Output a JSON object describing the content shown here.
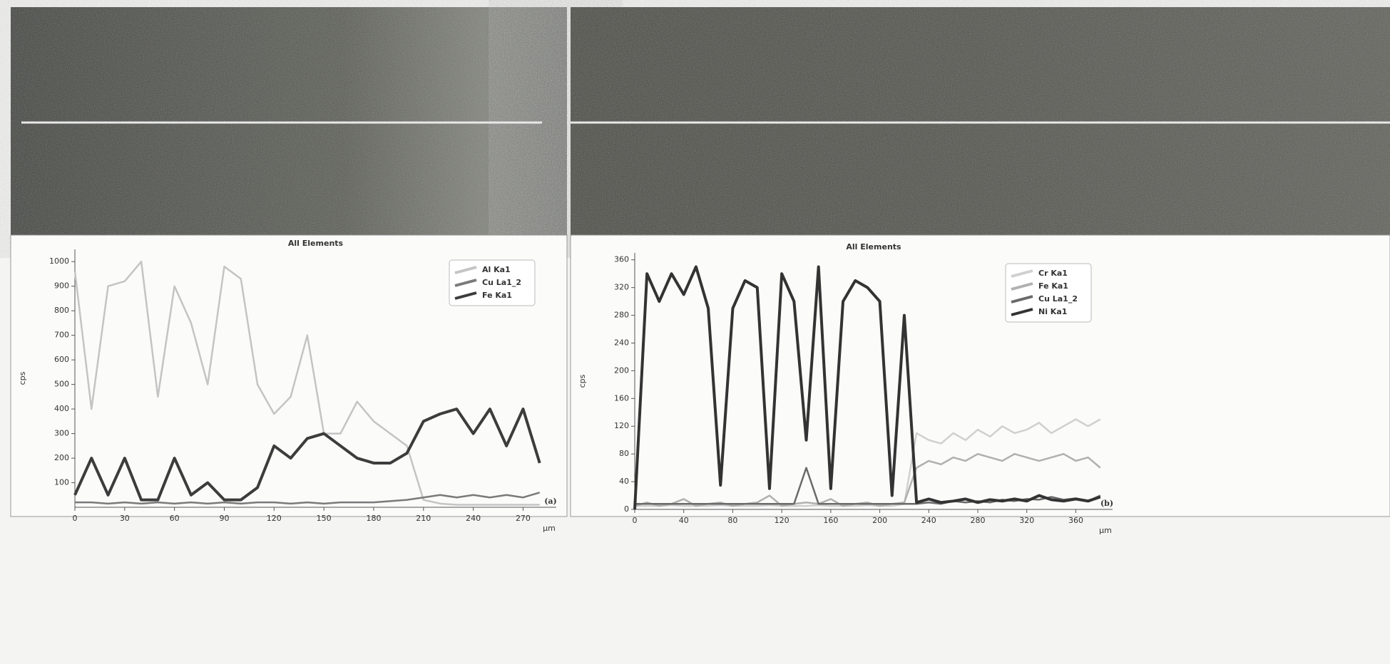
{
  "chart_data": [
    {
      "type": "line",
      "title": "All Elements",
      "y_label": "cps",
      "x_label": "µm",
      "panel_label": "(a)",
      "legend": "top-right",
      "x": [
        0,
        10,
        20,
        30,
        40,
        50,
        60,
        70,
        80,
        90,
        100,
        110,
        120,
        130,
        140,
        150,
        160,
        170,
        180,
        190,
        200,
        210,
        220,
        230,
        240,
        250,
        260,
        270,
        280
      ],
      "xlim": [
        0,
        290
      ],
      "xticks": [
        0,
        30,
        60,
        90,
        120,
        150,
        180,
        210,
        240,
        270
      ],
      "ylim": [
        0,
        1050
      ],
      "yticks": [
        100,
        200,
        300,
        400,
        500,
        600,
        700,
        800,
        900,
        1000
      ],
      "series": [
        {
          "name": "Al Ka1",
          "color": "#c4c4c4",
          "values": [
            960,
            400,
            900,
            920,
            1000,
            450,
            900,
            750,
            500,
            980,
            930,
            500,
            380,
            450,
            700,
            300,
            300,
            430,
            350,
            300,
            250,
            30,
            15,
            10,
            10,
            10,
            10,
            10,
            10
          ]
        },
        {
          "name": "Cu La1_2",
          "color": "#7a7a7a",
          "values": [
            20,
            20,
            15,
            20,
            15,
            20,
            15,
            20,
            15,
            20,
            15,
            20,
            20,
            15,
            20,
            15,
            20,
            20,
            20,
            25,
            30,
            40,
            50,
            40,
            50,
            40,
            50,
            40,
            60
          ]
        },
        {
          "name": "Fe Ka1",
          "color": "#3c3c3c",
          "values": [
            50,
            200,
            50,
            200,
            30,
            30,
            200,
            50,
            100,
            30,
            30,
            80,
            250,
            200,
            280,
            300,
            250,
            200,
            180,
            180,
            220,
            350,
            380,
            400,
            300,
            400,
            250,
            400,
            180
          ]
        }
      ]
    },
    {
      "type": "line",
      "title": "All Elements",
      "y_label": "cps",
      "x_label": "µm",
      "panel_label": "(b)",
      "legend": "top-right",
      "x": [
        0,
        10,
        20,
        30,
        40,
        50,
        60,
        70,
        80,
        90,
        100,
        110,
        120,
        130,
        140,
        150,
        160,
        170,
        180,
        190,
        200,
        210,
        220,
        230,
        240,
        250,
        260,
        270,
        280,
        290,
        300,
        310,
        320,
        330,
        340,
        350,
        360,
        370,
        380
      ],
      "xlim": [
        0,
        390
      ],
      "xticks": [
        0,
        40,
        80,
        120,
        160,
        200,
        240,
        280,
        320,
        360
      ],
      "ylim": [
        0,
        370
      ],
      "yticks": [
        0,
        40,
        80,
        120,
        160,
        200,
        240,
        280,
        320,
        360
      ],
      "series": [
        {
          "name": "Cr Ka1",
          "color": "#d0d0d0",
          "values": [
            5,
            5,
            5,
            6,
            5,
            5,
            5,
            6,
            5,
            5,
            5,
            6,
            5,
            5,
            5,
            6,
            5,
            5,
            5,
            6,
            5,
            5,
            8,
            110,
            100,
            95,
            110,
            100,
            115,
            105,
            120,
            110,
            115,
            125,
            110,
            120,
            130,
            120,
            130
          ]
        },
        {
          "name": "Fe Ka1",
          "color": "#b0b0b0",
          "values": [
            5,
            10,
            5,
            8,
            15,
            5,
            8,
            10,
            5,
            8,
            10,
            20,
            5,
            8,
            10,
            8,
            15,
            5,
            8,
            10,
            5,
            8,
            10,
            60,
            70,
            65,
            75,
            70,
            80,
            75,
            70,
            80,
            75,
            70,
            75,
            80,
            70,
            75,
            60
          ]
        },
        {
          "name": "Cu La1_2",
          "color": "#6a6a6a",
          "values": [
            8,
            8,
            8,
            8,
            8,
            8,
            8,
            8,
            8,
            8,
            8,
            8,
            8,
            8,
            60,
            8,
            8,
            8,
            8,
            8,
            8,
            8,
            8,
            8,
            10,
            8,
            12,
            10,
            12,
            10,
            14,
            12,
            15,
            14,
            18,
            14,
            16,
            12,
            20
          ]
        },
        {
          "name": "Ni Ka1",
          "color": "#333333",
          "values": [
            0,
            340,
            300,
            340,
            310,
            350,
            290,
            35,
            290,
            330,
            320,
            30,
            340,
            300,
            100,
            350,
            30,
            300,
            330,
            320,
            300,
            20,
            280,
            10,
            15,
            10,
            12,
            15,
            10,
            14,
            12,
            15,
            12,
            20,
            14,
            12,
            15,
            12,
            18
          ]
        }
      ]
    }
  ]
}
